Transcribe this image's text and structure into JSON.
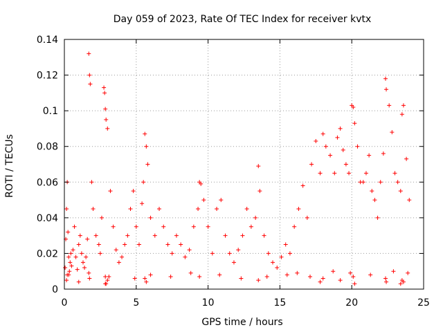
{
  "chart_data": {
    "type": "scatter",
    "title": "Day 059 of 2023, Rate Of TEC Index for receiver kvtx",
    "xlabel": "GPS time / hours",
    "ylabel": "ROTI / TECUs",
    "xlim": [
      0,
      25
    ],
    "ylim": [
      0,
      0.14
    ],
    "x_ticks": [
      "0",
      "5",
      "10",
      "15",
      "20",
      "25"
    ],
    "y_ticks": [
      "0",
      "0.02",
      "0.04",
      "0.06",
      "0.08",
      "0.1",
      "0.12",
      "0.14"
    ],
    "grid": true,
    "marker": "plus",
    "series": [
      {
        "color": "#ff0000",
        "x": [
          0.05,
          0.1,
          0.15,
          0.2,
          0.25,
          0.3,
          0.35,
          0.4,
          0.45,
          0.5,
          0.6,
          0.7,
          0.8,
          0.9,
          1.0,
          1.1,
          1.2,
          1.3,
          1.4,
          1.5,
          1.6,
          1.7,
          1.75,
          1.8,
          1.9,
          2.0,
          2.2,
          2.4,
          2.5,
          2.6,
          2.75,
          2.8,
          2.85,
          2.9,
          3.0,
          3.2,
          3.4,
          3.6,
          3.8,
          4.0,
          4.2,
          4.4,
          4.6,
          4.8,
          5.0,
          5.2,
          5.4,
          5.5,
          5.6,
          5.7,
          5.8,
          6.0,
          6.3,
          6.6,
          6.9,
          7.2,
          7.5,
          7.8,
          8.1,
          8.4,
          8.7,
          9.0,
          9.3,
          9.4,
          9.5,
          9.7,
          10.0,
          10.3,
          10.6,
          10.9,
          11.2,
          11.5,
          11.8,
          12.1,
          12.4,
          12.7,
          13.0,
          13.3,
          13.5,
          13.6,
          13.9,
          14.2,
          14.5,
          14.8,
          15.1,
          15.4,
          15.7,
          16.0,
          16.3,
          16.6,
          16.9,
          17.2,
          17.5,
          17.8,
          18.0,
          18.2,
          18.5,
          18.8,
          19.0,
          19.2,
          19.4,
          19.6,
          19.8,
          20.0,
          20.1,
          20.2,
          20.4,
          20.6,
          20.8,
          21.0,
          21.2,
          21.4,
          21.6,
          21.8,
          22.0,
          22.2,
          22.35,
          22.4,
          22.6,
          22.8,
          23.0,
          23.2,
          23.4,
          23.5,
          23.6,
          23.8,
          24.0,
          0.15,
          0.3,
          1.0,
          1.75,
          2.85,
          3.0,
          5.6,
          9.4,
          13.5,
          17.8,
          18.0,
          19.2,
          20.1,
          22.35,
          23.5,
          23.6,
          2.85,
          2.9,
          5.7,
          20.2,
          22.4,
          23.4,
          0.2,
          1.7,
          3.1,
          4.9,
          6.0,
          7.4,
          8.8,
          10.8,
          12.3,
          14.1,
          15.5,
          16.2,
          17.1,
          18.7,
          19.9,
          21.3,
          22.9,
          23.9
        ],
        "y": [
          0.012,
          0.028,
          0.045,
          0.06,
          0.032,
          0.018,
          0.01,
          0.015,
          0.02,
          0.013,
          0.022,
          0.035,
          0.018,
          0.011,
          0.025,
          0.03,
          0.02,
          0.015,
          0.012,
          0.018,
          0.028,
          0.132,
          0.12,
          0.115,
          0.06,
          0.045,
          0.03,
          0.025,
          0.02,
          0.04,
          0.113,
          0.11,
          0.101,
          0.095,
          0.09,
          0.055,
          0.035,
          0.022,
          0.015,
          0.018,
          0.025,
          0.03,
          0.045,
          0.055,
          0.035,
          0.025,
          0.048,
          0.06,
          0.087,
          0.08,
          0.07,
          0.04,
          0.03,
          0.045,
          0.035,
          0.025,
          0.02,
          0.03,
          0.025,
          0.018,
          0.022,
          0.035,
          0.045,
          0.06,
          0.059,
          0.05,
          0.035,
          0.02,
          0.045,
          0.05,
          0.03,
          0.02,
          0.015,
          0.022,
          0.03,
          0.045,
          0.035,
          0.04,
          0.069,
          0.055,
          0.03,
          0.02,
          0.015,
          0.012,
          0.018,
          0.025,
          0.02,
          0.035,
          0.045,
          0.058,
          0.04,
          0.07,
          0.083,
          0.065,
          0.087,
          0.08,
          0.075,
          0.065,
          0.085,
          0.09,
          0.078,
          0.07,
          0.065,
          0.103,
          0.102,
          0.093,
          0.08,
          0.06,
          0.06,
          0.065,
          0.075,
          0.055,
          0.05,
          0.04,
          0.06,
          0.076,
          0.118,
          0.112,
          0.103,
          0.088,
          0.065,
          0.06,
          0.055,
          0.098,
          0.103,
          0.073,
          0.05,
          0.005,
          0.008,
          0.004,
          0.006,
          0.007,
          0.005,
          0.006,
          0.007,
          0.005,
          0.004,
          0.006,
          0.005,
          0.007,
          0.006,
          0.005,
          0.004,
          0.003,
          0.003,
          0.004,
          0.003,
          0.004,
          0.003,
          0.008,
          0.009,
          0.007,
          0.006,
          0.008,
          0.007,
          0.009,
          0.008,
          0.006,
          0.007,
          0.008,
          0.009,
          0.007,
          0.01,
          0.009,
          0.008,
          0.01,
          0.009
        ]
      }
    ]
  }
}
